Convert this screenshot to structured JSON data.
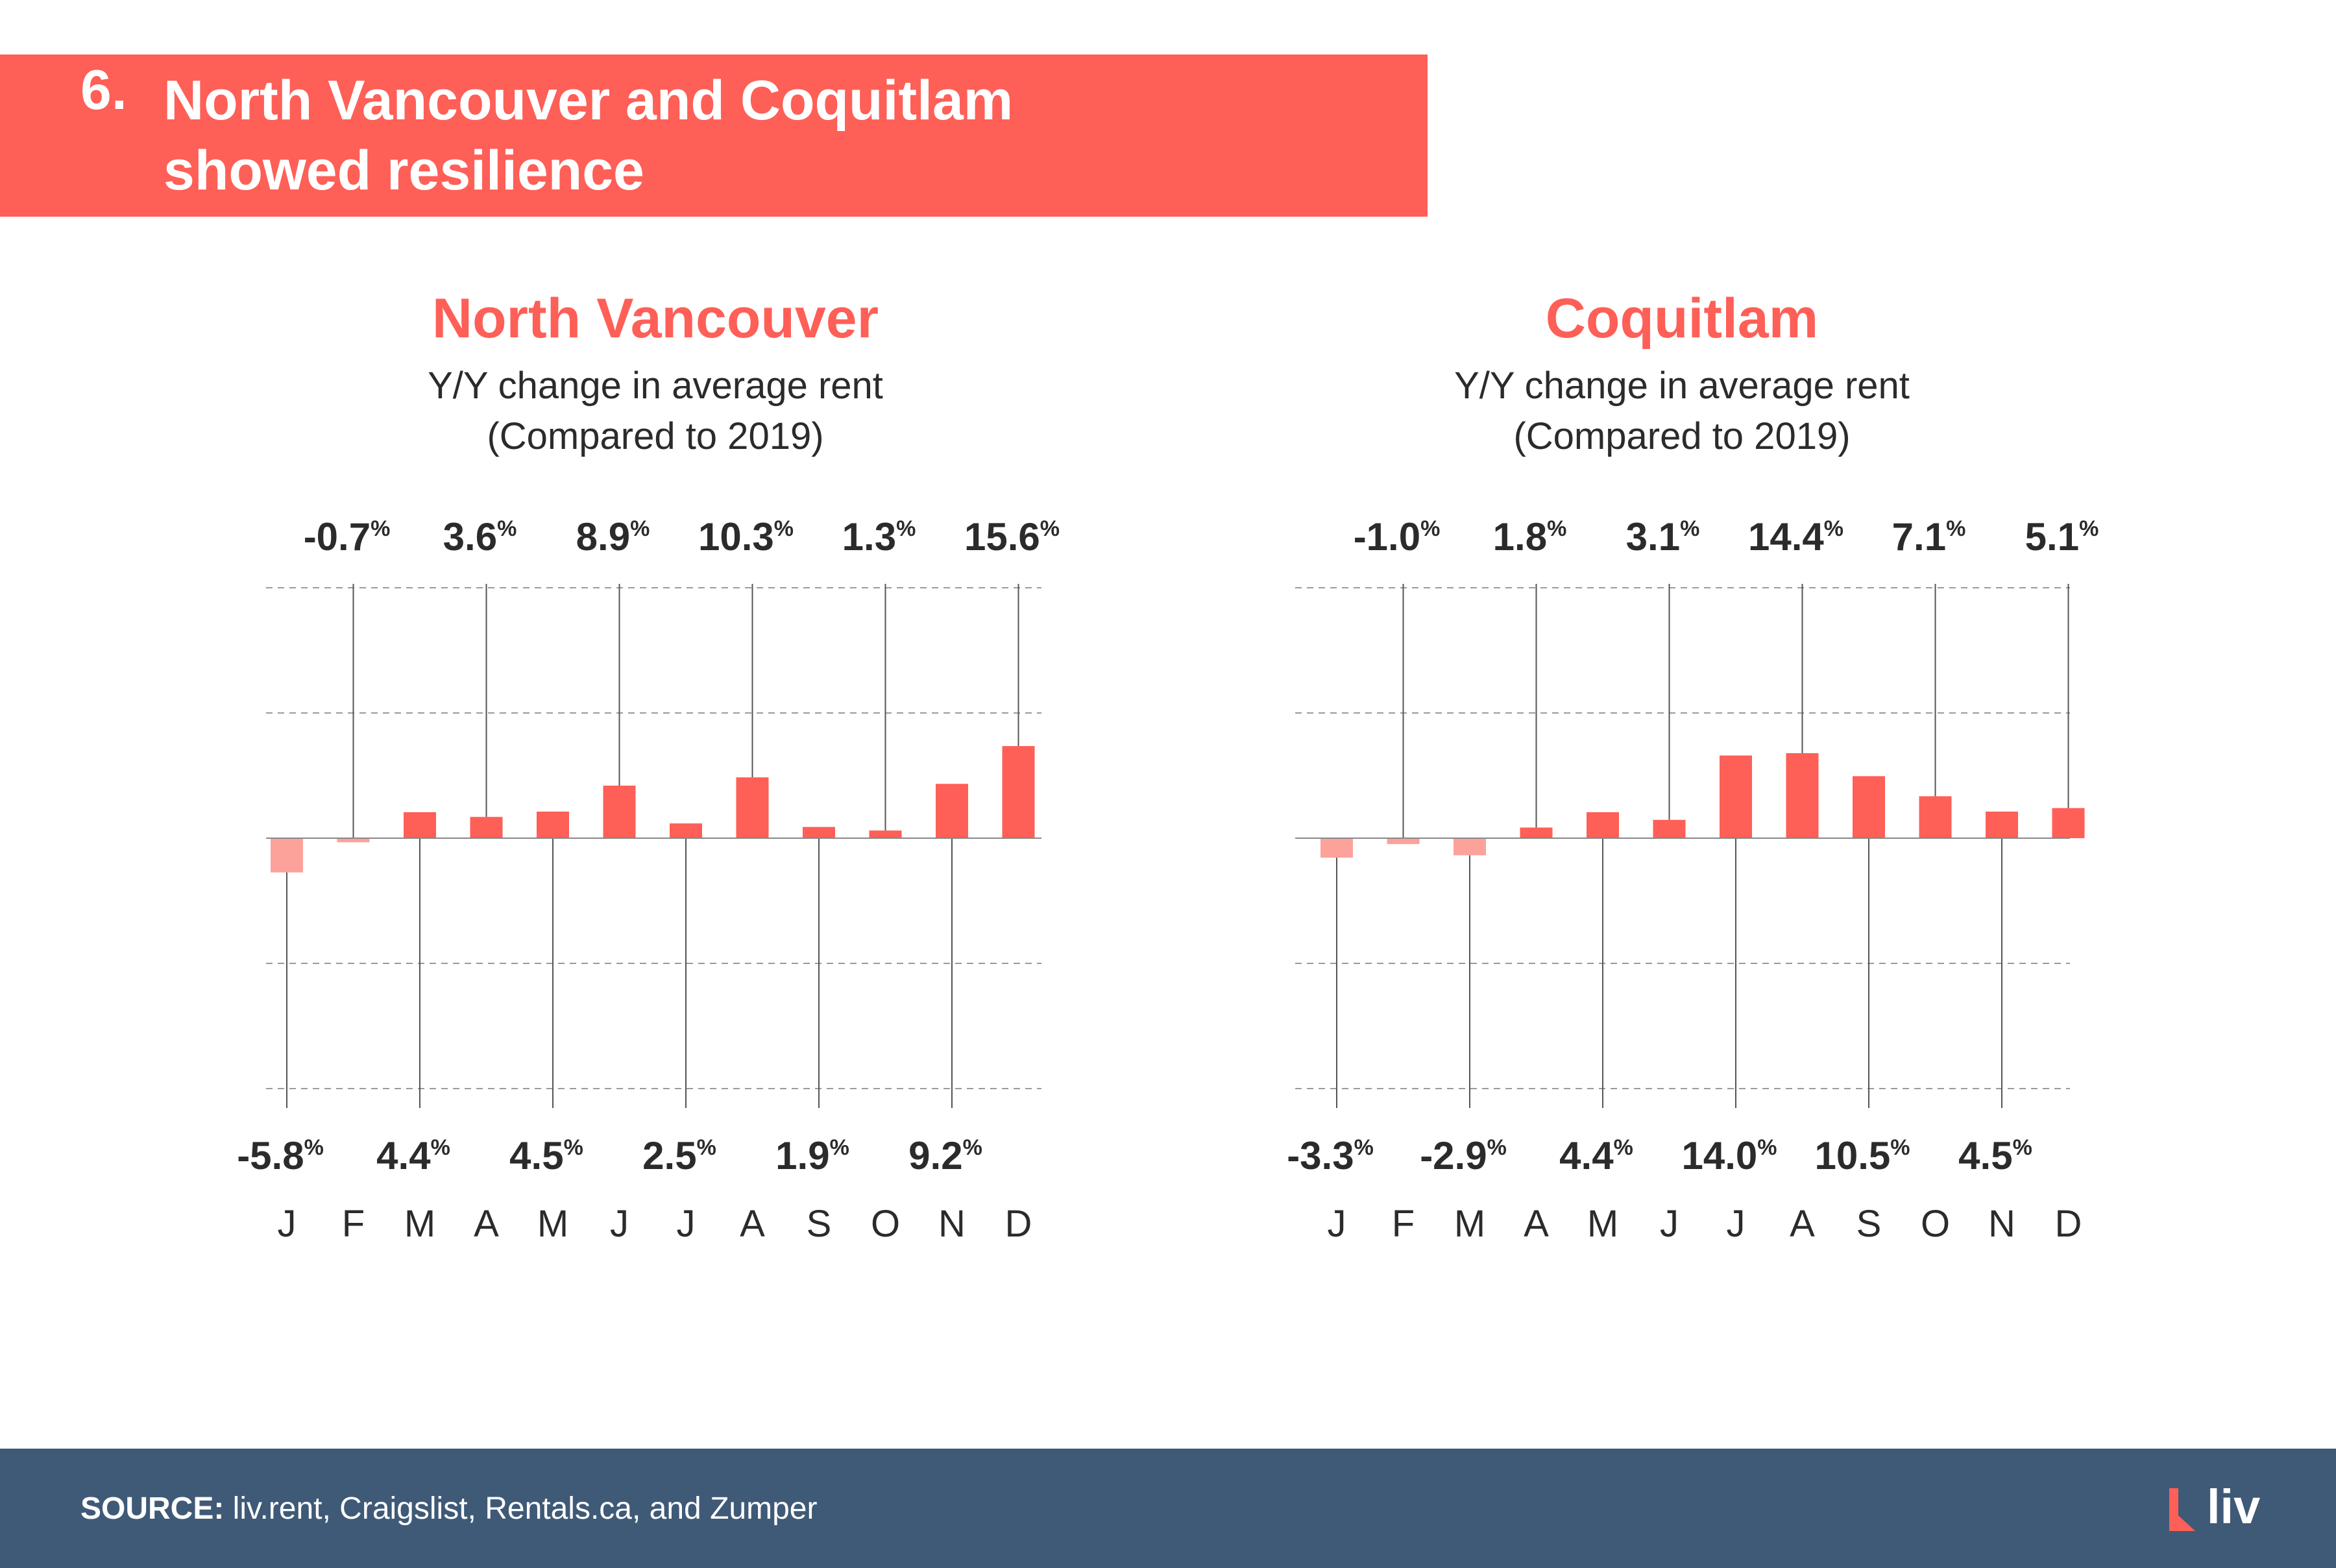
{
  "banner": {
    "number": "6.",
    "line1": "North Vancouver and Coquitlam",
    "line2": "showed resilience"
  },
  "footer": {
    "source_label": "SOURCE:",
    "source_text": " liv.rent, Craigslist, Rentals.ca, and Zumper",
    "logo_text": "liv"
  },
  "colors": {
    "accent": "#fe5f57",
    "negative": "#fda19b",
    "footer": "#3f5a77",
    "text": "#2b2b2b"
  },
  "chart_data": [
    {
      "type": "bar",
      "title": "North Vancouver",
      "subtitle_line1": "Y/Y change in average rent",
      "subtitle_line2": "(Compared to 2019)",
      "categories": [
        "J",
        "F",
        "M",
        "A",
        "M",
        "J",
        "J",
        "A",
        "S",
        "O",
        "N",
        "D"
      ],
      "values": [
        -5.8,
        -0.7,
        4.4,
        3.6,
        4.5,
        8.9,
        2.5,
        10.3,
        1.9,
        1.3,
        9.2,
        15.6
      ],
      "value_suffix": "%",
      "ylim": [
        -22,
        22
      ],
      "grid": true
    },
    {
      "type": "bar",
      "title": "Coquitlam",
      "subtitle_line1": "Y/Y change in average rent",
      "subtitle_line2": "(Compared to 2019)",
      "categories": [
        "J",
        "F",
        "M",
        "A",
        "M",
        "J",
        "J",
        "A",
        "S",
        "O",
        "N",
        "D"
      ],
      "values": [
        -3.3,
        -1.0,
        -2.9,
        1.8,
        4.4,
        3.1,
        14.0,
        14.4,
        10.5,
        7.1,
        4.5,
        5.1
      ],
      "value_suffix": "%",
      "ylim": [
        -22,
        22
      ],
      "grid": true
    }
  ]
}
